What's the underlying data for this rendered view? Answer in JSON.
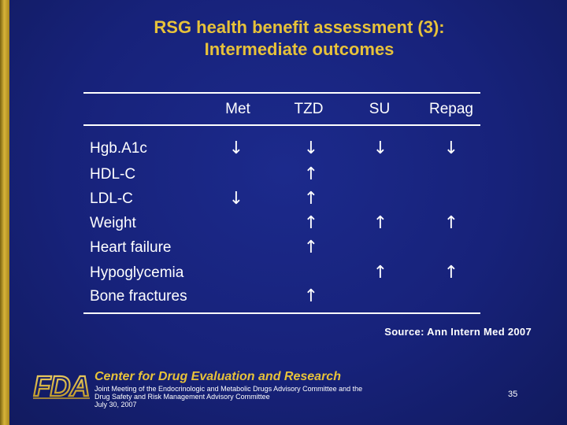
{
  "title": {
    "line1": "RSG health benefit assessment (3):",
    "line2": "Intermediate outcomes"
  },
  "table": {
    "columns": [
      "Met",
      "TZD",
      "SU",
      "Repag"
    ],
    "rows": [
      {
        "label": "Hgb.A1c",
        "cells": [
          "↓",
          "↓",
          "↓",
          "↓"
        ]
      },
      {
        "label": "HDL-C",
        "cells": [
          "",
          "↑",
          "",
          ""
        ]
      },
      {
        "label": "LDL-C",
        "cells": [
          "↓",
          "↑",
          "",
          ""
        ]
      },
      {
        "label": "Weight",
        "cells": [
          "",
          "↑",
          "↑",
          "↑"
        ]
      },
      {
        "label": "Heart failure",
        "cells": [
          "",
          "↑",
          "",
          ""
        ]
      },
      {
        "label": "Hypoglycemia",
        "cells": [
          "",
          "",
          "↑",
          "↑"
        ]
      },
      {
        "label": "Bone fractures",
        "cells": [
          "",
          "↑",
          "",
          ""
        ]
      }
    ]
  },
  "source": "Source: Ann Intern Med 2007",
  "footer": {
    "logo_text": "FDA",
    "center_name": "Center for Drug Evaluation and Research",
    "meeting_line1": "Joint Meeting of the Endocrinologic and Metabolic Drugs Advisory Committee and the",
    "meeting_line2": "Drug Safety and Risk Management Advisory Committee",
    "meeting_date": "July 30, 2007",
    "page_number": "35"
  },
  "colors": {
    "background": "#17227a",
    "title": "#e7c23a",
    "text": "#ffffff",
    "left_bar": "#d7b33a"
  }
}
